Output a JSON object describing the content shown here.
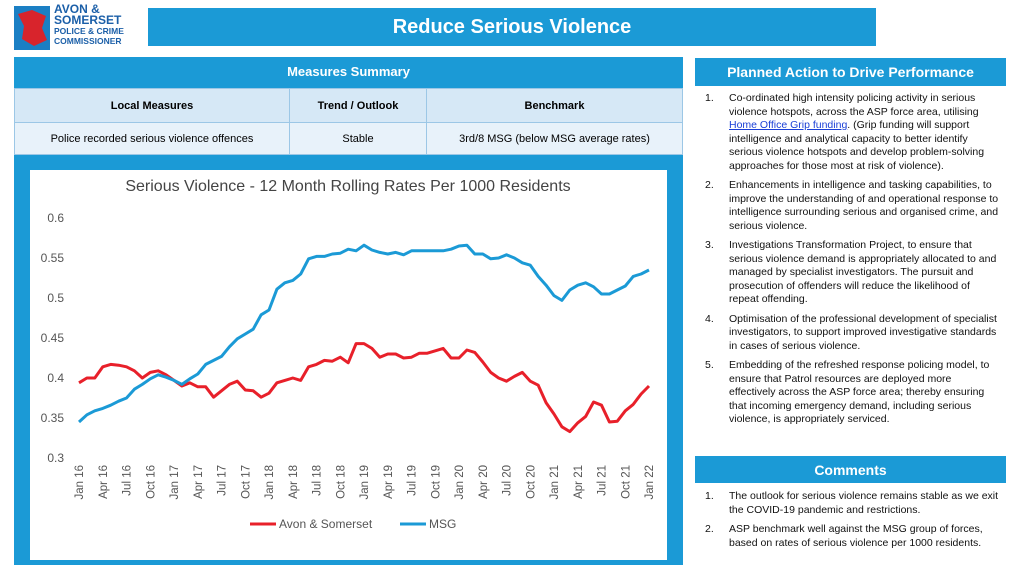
{
  "logo": {
    "lines": [
      "AVON &",
      "SOMERSET",
      "POLICE & CRIME",
      "COMMISSIONER"
    ]
  },
  "header": {
    "title": "Reduce Serious Violence"
  },
  "measures": {
    "title": "Measures Summary",
    "columns": [
      "Local Measures",
      "Trend / Outlook",
      "Benchmark"
    ],
    "rows": [
      [
        "Police recorded serious violence offences",
        "Stable",
        "3rd/8 MSG (below MSG average rates)"
      ]
    ]
  },
  "chart_data": {
    "type": "line",
    "title": "Serious Violence - 12 Month Rolling Rates Per 1000 Residents",
    "categories": [
      "Jan 16",
      null,
      null,
      "Apr 16",
      null,
      null,
      "Jul 16",
      null,
      null,
      "Oct 16",
      null,
      null,
      "Jan 17",
      null,
      null,
      "Apr 17",
      null,
      null,
      "Jul 17",
      null,
      null,
      "Oct 17",
      null,
      null,
      "Jan 18",
      null,
      null,
      "Apr 18",
      null,
      null,
      "Jul 18",
      null,
      null,
      "Oct 18",
      null,
      null,
      "Jan 19",
      null,
      null,
      "Apr 19",
      null,
      null,
      "Jul 19",
      null,
      null,
      "Oct 19",
      null,
      null,
      "Jan 20",
      null,
      null,
      "Apr 20",
      null,
      null,
      "Jul 20",
      null,
      null,
      "Oct 20",
      null,
      null,
      "Jan 21",
      null,
      null,
      "Apr 21",
      null,
      null,
      "Jul 21",
      null,
      null,
      "Oct 21",
      null,
      null,
      "Jan 22"
    ],
    "series": [
      {
        "name": "Avon & Somerset",
        "color": "#e8202a",
        "values": [
          0.394,
          0.4,
          0.4,
          0.414,
          0.417,
          0.416,
          0.414,
          0.409,
          0.4,
          0.407,
          0.409,
          0.404,
          0.397,
          0.39,
          0.394,
          0.389,
          0.389,
          0.376,
          0.384,
          0.392,
          0.396,
          0.385,
          0.384,
          0.376,
          0.381,
          0.394,
          0.397,
          0.4,
          0.397,
          0.414,
          0.417,
          0.422,
          0.421,
          0.426,
          0.419,
          0.443,
          0.443,
          0.437,
          0.426,
          0.43,
          0.43,
          0.425,
          0.426,
          0.431,
          0.431,
          0.434,
          0.437,
          0.425,
          0.425,
          0.435,
          0.432,
          0.42,
          0.407,
          0.4,
          0.396,
          0.402,
          0.407,
          0.396,
          0.391,
          0.369,
          0.355,
          0.339,
          0.333,
          0.344,
          0.352,
          0.37,
          0.366,
          0.345,
          0.346,
          0.359,
          0.367,
          0.38,
          0.39
        ]
      },
      {
        "name": "MSG",
        "color": "#1b9ad6",
        "values": [
          0.345,
          0.354,
          0.359,
          0.362,
          0.366,
          0.371,
          0.375,
          0.386,
          0.392,
          0.399,
          0.404,
          0.401,
          0.397,
          0.392,
          0.399,
          0.405,
          0.417,
          0.422,
          0.427,
          0.439,
          0.449,
          0.455,
          0.461,
          0.479,
          0.485,
          0.511,
          0.519,
          0.522,
          0.53,
          0.549,
          0.552,
          0.552,
          0.555,
          0.556,
          0.561,
          0.559,
          0.566,
          0.56,
          0.557,
          0.555,
          0.557,
          0.554,
          0.559,
          0.559,
          0.559,
          0.559,
          0.559,
          0.561,
          0.565,
          0.566,
          0.555,
          0.555,
          0.549,
          0.55,
          0.554,
          0.55,
          0.544,
          0.541,
          0.527,
          0.516,
          0.503,
          0.497,
          0.51,
          0.516,
          0.519,
          0.514,
          0.505,
          0.505,
          0.51,
          0.515,
          0.527,
          0.53,
          0.535
        ]
      }
    ],
    "ylim": [
      0.3,
      0.6
    ],
    "yticks": [
      0.3,
      0.35,
      0.4,
      0.45,
      0.5,
      0.55,
      0.6
    ],
    "legend": "bottom"
  },
  "actions": {
    "title": "Planned Action to Drive Performance",
    "items": [
      {
        "number": "1.",
        "text": "Co-ordinated high intensity policing activity in serious violence hotspots, across the ASP force area, utilising ",
        "link": "Home Office Grip funding",
        "after": ". (Grip funding will support intelligence and analytical capacity to better identify serious violence hotspots and develop problem-solving approaches for those most at risk of violence)."
      },
      {
        "number": "2.",
        "text": "Enhancements in intelligence and tasking capabilities, to improve the understanding of and operational response to intelligence surrounding serious and organised crime, and serious violence."
      },
      {
        "number": "3.",
        "text": "Investigations Transformation Project, to ensure that serious violence demand is appropriately allocated to and managed by specialist investigators. The pursuit and prosecution of offenders will reduce the likelihood of repeat offending."
      },
      {
        "number": "4.",
        "text": "Optimisation of the professional development of specialist investigators, to support improved investigative standards in cases of serious violence."
      },
      {
        "number": "5.",
        "text": "Embedding of the refreshed response policing model, to ensure that Patrol resources are deployed more effectively across the ASP force area; thereby ensuring that incoming emergency demand, including serious violence, is appropriately serviced."
      }
    ]
  },
  "comments": {
    "title": "Comments",
    "items": [
      {
        "number": "1.",
        "text": "The outlook for serious violence remains stable as we exit the COVID-19 pandemic and restrictions."
      },
      {
        "number": "2.",
        "text": "ASP benchmark well against the MSG group of forces, based on rates of serious violence per 1000 residents."
      }
    ]
  }
}
